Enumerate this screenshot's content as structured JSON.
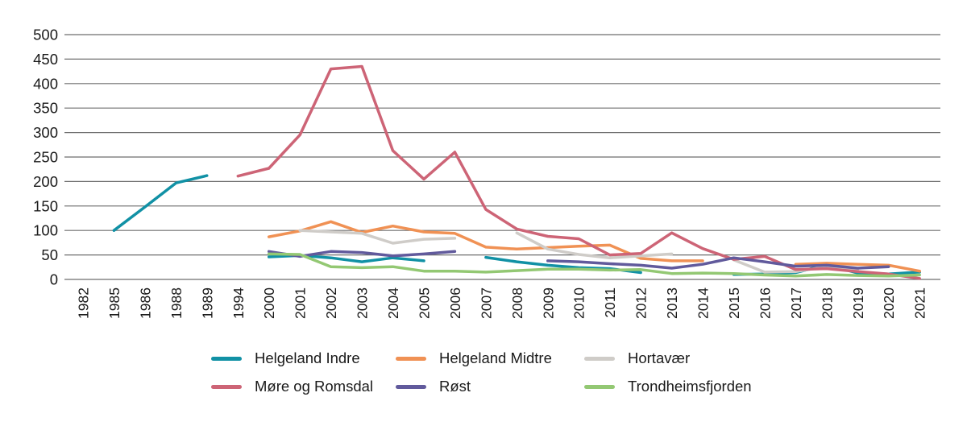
{
  "chart_data": {
    "type": "line",
    "title": "",
    "xlabel": "",
    "ylabel": "",
    "categories": [
      "1982",
      "1985",
      "1986",
      "1988",
      "1989",
      "1994",
      "2000",
      "2001",
      "2002",
      "2003",
      "2004",
      "2005",
      "2006",
      "2007",
      "2008",
      "2009",
      "2010",
      "2011",
      "2012",
      "2013",
      "2014",
      "2015",
      "2016",
      "2017",
      "2018",
      "2019",
      "2020",
      "2021"
    ],
    "yticks": [
      0,
      50,
      100,
      150,
      200,
      250,
      300,
      350,
      400,
      450,
      500
    ],
    "ylim": [
      0,
      500
    ],
    "grid": "horizontal",
    "legend_position": "bottom",
    "series": [
      {
        "name": "Helgeland Indre",
        "color": "#1191a5",
        "values": [
          null,
          100,
          148,
          197,
          212,
          null,
          46,
          49,
          44,
          36,
          44,
          38,
          null,
          45,
          36,
          29,
          24,
          22,
          14,
          null,
          null,
          10,
          11,
          14,
          30,
          13,
          11,
          15
        ]
      },
      {
        "name": "Helgeland Midtre",
        "color": "#f09154",
        "values": [
          null,
          null,
          null,
          null,
          null,
          null,
          87,
          99,
          118,
          96,
          109,
          97,
          94,
          66,
          62,
          65,
          68,
          70,
          43,
          38,
          38,
          null,
          null,
          31,
          33,
          31,
          29,
          17
        ]
      },
      {
        "name": "Hortavær",
        "color": "#cfccc8",
        "values": [
          null,
          null,
          null,
          null,
          null,
          null,
          null,
          100,
          97,
          94,
          74,
          82,
          84,
          null,
          95,
          62,
          51,
          44,
          48,
          52,
          null,
          40,
          15,
          16,
          26,
          20,
          null,
          null
        ]
      },
      {
        "name": "Møre og Romsdal",
        "color": "#cd6476",
        "values": [
          null,
          null,
          null,
          null,
          null,
          211,
          227,
          295,
          430,
          435,
          263,
          205,
          260,
          143,
          103,
          88,
          83,
          50,
          53,
          95,
          63,
          41,
          47,
          20,
          22,
          16,
          11,
          2
        ]
      },
      {
        "name": "Røst",
        "color": "#615a9c",
        "values": [
          null,
          null,
          null,
          null,
          null,
          null,
          57,
          47,
          57,
          55,
          48,
          52,
          57,
          null,
          null,
          38,
          36,
          32,
          29,
          23,
          31,
          44,
          36,
          27,
          29,
          23,
          26,
          null
        ]
      },
      {
        "name": "Trondheimsfjorden",
        "color": "#93c873",
        "values": [
          null,
          null,
          null,
          null,
          null,
          null,
          52,
          51,
          26,
          24,
          26,
          17,
          17,
          15,
          18,
          21,
          21,
          19,
          20,
          12,
          13,
          12,
          9,
          7,
          10,
          8,
          7,
          9
        ]
      }
    ]
  },
  "styles": {
    "grid_color": "#6e6e6e",
    "axis_text_color": "#1a1a1a",
    "background": "#ffffff"
  }
}
